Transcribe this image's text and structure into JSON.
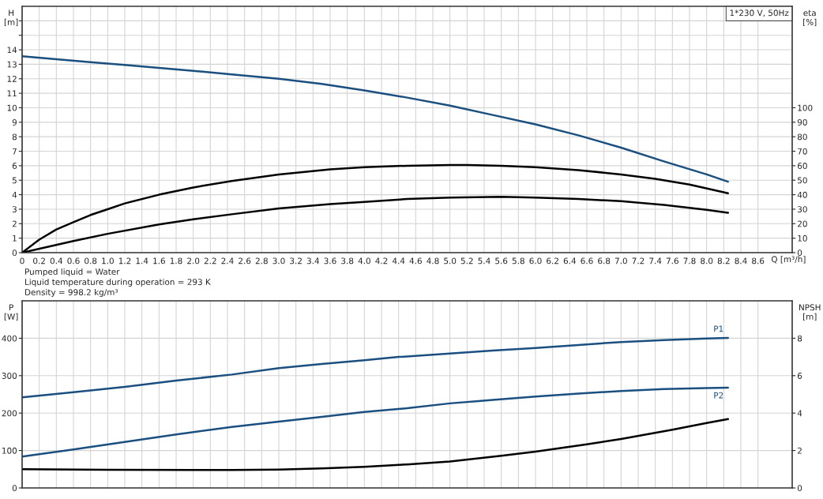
{
  "chart_data": [
    {
      "type": "line",
      "xlabel": "Q [m³/h]",
      "ylabel": "H\n[m]",
      "y2label": "eta\n[%]",
      "annotations": [
        "1*230 V, 50Hz",
        "Pumped liquid = Water",
        "Liquid temperature during operation = 293 K",
        "Density = 998.2 kg/m³"
      ],
      "xlim": [
        0,
        9.0
      ],
      "xticks": [
        0,
        0.2,
        0.4,
        0.6,
        0.8,
        {
          "value": 1.0,
          "label": "1.0"
        },
        1.2,
        1.4,
        1.6,
        1.8,
        {
          "value": 2.0,
          "label": "2.0"
        },
        2.2,
        2.4,
        2.6,
        2.8,
        {
          "value": 3.0,
          "label": "3.0"
        },
        3.2,
        3.4,
        3.6,
        3.8,
        {
          "value": 4.0,
          "label": "4.0"
        },
        4.2,
        4.4,
        4.6,
        4.8,
        {
          "value": 5.0,
          "label": "5.0"
        },
        5.2,
        5.4,
        5.6,
        5.8,
        {
          "value": 6.0,
          "label": "6.0"
        },
        6.2,
        6.4,
        6.6,
        6.8,
        {
          "value": 7.0,
          "label": "7.0"
        },
        7.2,
        7.4,
        7.6,
        7.8,
        {
          "value": 8.0,
          "label": "8.0"
        },
        8.2,
        8.4,
        8.6
      ],
      "ylim": [
        0,
        17
      ],
      "yticks": [
        0,
        1,
        2,
        3,
        4,
        5,
        6,
        7,
        8,
        9,
        10,
        11,
        12,
        13,
        14,
        {
          "value": 15,
          "label": null
        },
        {
          "value": 16,
          "label": null
        }
      ],
      "y2lim": [
        0,
        170
      ],
      "y2ticks": [
        0,
        10,
        20,
        30,
        40,
        50,
        60,
        70,
        80,
        90,
        100
      ],
      "grid": true,
      "legend": false,
      "marker": "none",
      "line_style": "solid",
      "series": [
        {
          "color": "#1a4f80",
          "x": [
            0,
            0.4,
            0.8,
            1.2,
            1.6,
            2.0,
            2.45,
            3.0,
            3.5,
            4.0,
            4.5,
            5.0,
            5.5,
            6.0,
            6.5,
            7.0,
            7.5,
            8.0,
            8.25
          ],
          "values": [
            13.55,
            13.35,
            13.15,
            12.95,
            12.75,
            12.55,
            12.3,
            12.0,
            11.65,
            11.2,
            10.7,
            10.15,
            9.5,
            8.85,
            8.1,
            7.25,
            6.3,
            5.4,
            4.9
          ]
        },
        {
          "color": "#000000",
          "axis": "y2",
          "x": [
            0,
            0.2,
            0.4,
            0.6,
            0.8,
            1.0,
            1.2,
            1.6,
            2.0,
            2.45,
            3.0,
            3.6,
            4.0,
            4.5,
            5.0,
            5.2,
            5.6,
            6.0,
            6.5,
            7.0,
            7.4,
            7.8,
            8.25
          ],
          "values": [
            0,
            9,
            16,
            21,
            26,
            30,
            34,
            40,
            45,
            49.5,
            54,
            57.5,
            59,
            60,
            60.5,
            60.5,
            60,
            59,
            57,
            54,
            51,
            47,
            41
          ]
        },
        {
          "color": "#000000",
          "axis": "y2",
          "x": [
            0,
            0.6,
            1.0,
            1.6,
            2.0,
            2.45,
            3.0,
            3.6,
            4.0,
            4.5,
            5.0,
            5.6,
            6.0,
            6.5,
            7.0,
            7.5,
            8.0,
            8.25
          ],
          "values": [
            0,
            8,
            13,
            19.5,
            23,
            26.5,
            30.5,
            33.5,
            35,
            37,
            38,
            38.5,
            38,
            37,
            35.5,
            33,
            29.5,
            27.5
          ]
        }
      ]
    },
    {
      "type": "line",
      "ylabel": "P\n[W]",
      "y2label": "NPSH\n[m]",
      "tick_labels": "y",
      "xlim": [
        0,
        9.0
      ],
      "xticks": [
        0,
        0.2,
        0.4,
        0.6,
        0.8,
        1.0,
        1.2,
        1.4,
        1.6,
        1.8,
        2.0,
        2.2,
        2.4,
        2.6,
        2.8,
        3.0,
        3.2,
        3.4,
        3.6,
        3.8,
        4.0,
        4.2,
        4.4,
        4.6,
        4.8,
        5.0,
        5.2,
        5.4,
        5.6,
        5.8,
        6.0,
        6.2,
        6.4,
        6.6,
        6.8,
        7.0,
        7.2,
        7.4,
        7.6,
        7.8,
        8.0,
        8.2,
        8.4,
        8.6
      ],
      "ylim": [
        0,
        500
      ],
      "yticks": [
        0,
        100,
        200,
        300,
        400
      ],
      "y2lim": [
        0,
        10
      ],
      "y2ticks": [
        0,
        2,
        4,
        6,
        8
      ],
      "grid": true,
      "legend": false,
      "marker": "none",
      "line_style": "solid",
      "series": [
        {
          "name": "P1",
          "color": "#1a4f80",
          "x": [
            0,
            0.6,
            1.2,
            1.8,
            2.45,
            3.0,
            3.5,
            4.0,
            4.4,
            5.0,
            5.5,
            6.0,
            6.5,
            7.0,
            7.5,
            8.0,
            8.25
          ],
          "values": [
            242,
            256,
            270,
            287,
            303,
            320,
            331,
            341,
            350,
            359,
            367,
            374,
            382,
            390,
            395,
            399,
            401
          ]
        },
        {
          "name": "P2",
          "color": "#1a4f80",
          "x": [
            0,
            0.6,
            1.2,
            1.8,
            2.45,
            3.0,
            3.5,
            4.0,
            4.5,
            5.0,
            5.5,
            6.0,
            6.5,
            7.0,
            7.5,
            8.0,
            8.25
          ],
          "values": [
            84,
            103,
            123,
            143,
            163,
            177,
            190,
            203,
            213,
            226,
            235,
            244,
            252,
            259,
            264,
            267,
            268
          ]
        },
        {
          "color": "#000000",
          "axis": "y2",
          "x": [
            0,
            1.0,
            2.0,
            2.45,
            3.0,
            3.5,
            4.0,
            4.5,
            5.0,
            5.6,
            6.0,
            6.6,
            7.0,
            7.6,
            8.0,
            8.25
          ],
          "values": [
            1.0,
            0.97,
            0.96,
            0.96,
            0.98,
            1.04,
            1.13,
            1.26,
            1.41,
            1.72,
            1.94,
            2.33,
            2.62,
            3.11,
            3.47,
            3.68
          ]
        }
      ]
    }
  ]
}
